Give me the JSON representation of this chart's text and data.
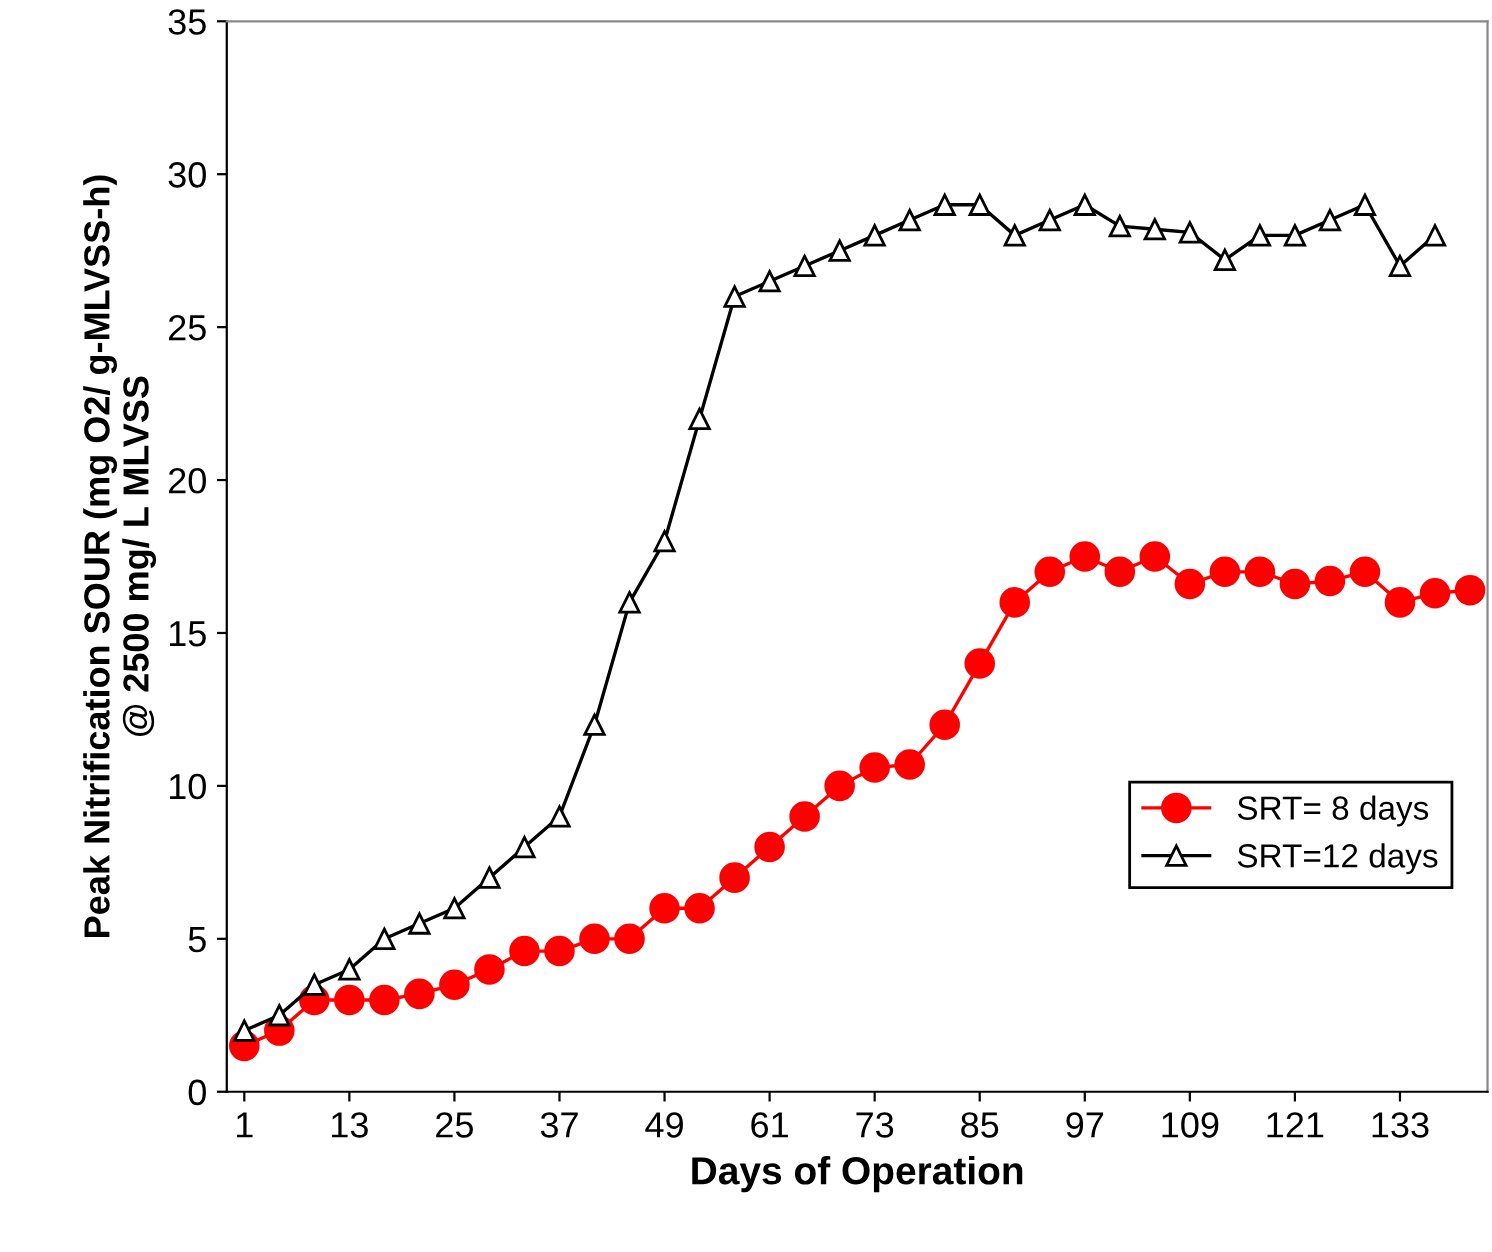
{
  "chart_data": {
    "type": "line",
    "xlabel": "Days of Operation",
    "ylabel": "Peak Nitrification SOUR (mg O2/ g-MLVSS-h)\n@ 2500 mg/ L MLVSS",
    "x": [
      1,
      5,
      9,
      13,
      17,
      21,
      25,
      29,
      33,
      37,
      41,
      45,
      49,
      53,
      57,
      61,
      65,
      69,
      73,
      77,
      81,
      85,
      89,
      93,
      97,
      101,
      105,
      109,
      113,
      117,
      121,
      125,
      129,
      133,
      137,
      141
    ],
    "series": [
      {
        "name": "SRT= 8 days",
        "color": "#ff0000",
        "marker": "circle",
        "values": [
          1.5,
          2,
          3,
          3,
          3,
          3.2,
          3.5,
          4,
          4.6,
          4.6,
          5,
          5,
          6,
          6,
          7,
          8,
          9,
          10,
          10.6,
          10.7,
          12,
          14,
          16,
          17,
          17.5,
          17,
          17.5,
          16.6,
          17,
          17,
          16.6,
          16.7,
          17,
          16,
          16.3,
          16.4
        ]
      },
      {
        "name": "SRT=12 days",
        "color": "#000000",
        "marker": "triangle",
        "values": [
          2,
          2.5,
          3.5,
          4,
          5,
          5.5,
          6,
          7,
          8,
          9,
          12,
          16,
          18,
          22,
          26,
          26.5,
          27,
          27.5,
          28,
          28.5,
          29,
          29,
          28,
          28.5,
          29,
          28.3,
          28.2,
          28.1,
          27.2,
          28,
          28,
          28.5,
          29,
          27,
          28,
          null
        ]
      }
    ],
    "xlim": [
      -1,
      143
    ],
    "xticks": [
      1,
      13,
      25,
      37,
      49,
      61,
      73,
      85,
      97,
      109,
      121,
      133
    ],
    "ylim": [
      0,
      35
    ],
    "yticks": [
      0,
      5,
      10,
      15,
      20,
      25,
      30,
      35
    ],
    "grid": false,
    "legend": "right"
  }
}
